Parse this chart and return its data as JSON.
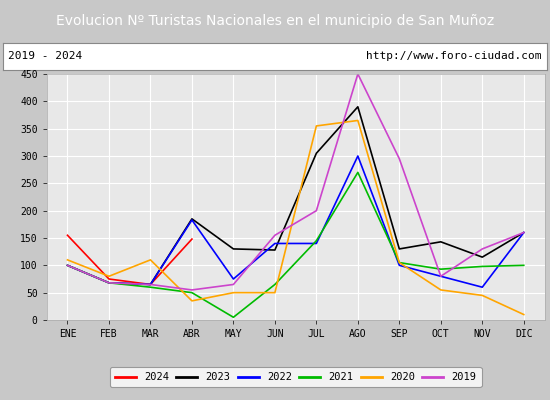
{
  "title": "Evolucion Nº Turistas Nacionales en el municipio de San Muñoz",
  "subtitle_left": "2019 - 2024",
  "subtitle_right": "http://www.foro-ciudad.com",
  "title_bg": "#4d8fcc",
  "title_color": "white",
  "fig_bg": "#c8c8c8",
  "plot_bg": "#e8e8e8",
  "months": [
    "ENE",
    "FEB",
    "MAR",
    "ABR",
    "MAY",
    "JUN",
    "JUL",
    "AGO",
    "SEP",
    "OCT",
    "NOV",
    "DIC"
  ],
  "ylim": [
    0,
    450
  ],
  "yticks": [
    0,
    50,
    100,
    150,
    200,
    250,
    300,
    350,
    400,
    450
  ],
  "series_order": [
    "2024",
    "2023",
    "2022",
    "2021",
    "2020",
    "2019"
  ],
  "series": {
    "2024": {
      "color": "#ff0000",
      "data": [
        155,
        75,
        65,
        148,
        null,
        null,
        null,
        null,
        null,
        null,
        null,
        null
      ]
    },
    "2023": {
      "color": "#000000",
      "data": [
        100,
        68,
        65,
        185,
        130,
        128,
        305,
        390,
        130,
        143,
        115,
        160
      ]
    },
    "2022": {
      "color": "#0000ff",
      "data": [
        100,
        68,
        65,
        183,
        75,
        140,
        140,
        300,
        100,
        80,
        60,
        160
      ]
    },
    "2021": {
      "color": "#00bb00",
      "data": [
        100,
        68,
        60,
        50,
        5,
        65,
        145,
        270,
        105,
        93,
        98,
        100
      ]
    },
    "2020": {
      "color": "#ffa500",
      "data": [
        110,
        80,
        110,
        35,
        50,
        50,
        355,
        365,
        105,
        55,
        45,
        10
      ]
    },
    "2019": {
      "color": "#cc44cc",
      "data": [
        100,
        68,
        65,
        55,
        65,
        155,
        200,
        450,
        295,
        80,
        130,
        160
      ]
    }
  }
}
